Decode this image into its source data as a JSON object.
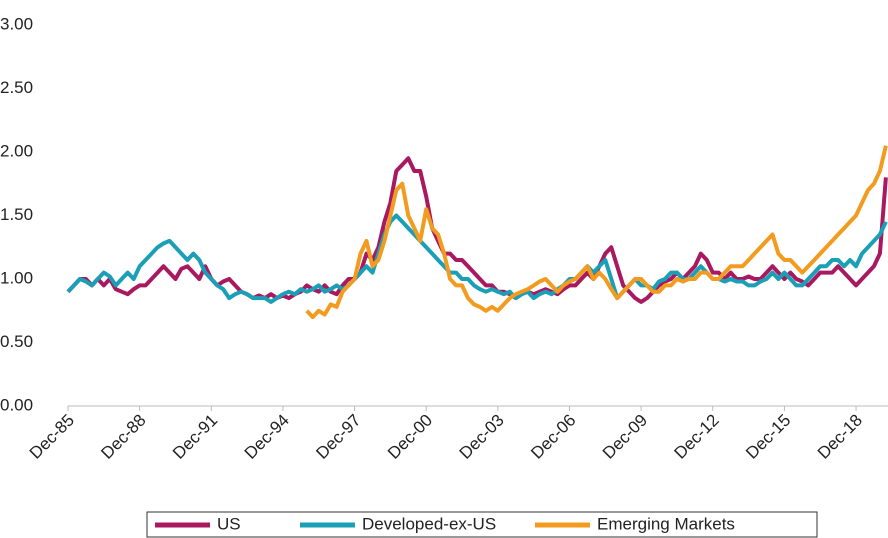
{
  "chart_data": {
    "type": "line",
    "categories": [
      "Dec-85",
      null,
      null,
      null,
      null,
      null,
      null,
      null,
      null,
      null,
      null,
      null,
      "Dec-88",
      null,
      null,
      null,
      null,
      null,
      null,
      null,
      null,
      null,
      null,
      null,
      "Dec-91",
      null,
      null,
      null,
      null,
      null,
      null,
      null,
      null,
      null,
      null,
      null,
      "Dec-94",
      null,
      null,
      null,
      null,
      null,
      null,
      null,
      null,
      null,
      null,
      null,
      "Dec-97",
      null,
      null,
      null,
      null,
      null,
      null,
      null,
      null,
      null,
      null,
      null,
      "Dec-00",
      null,
      null,
      null,
      null,
      null,
      null,
      null,
      null,
      null,
      null,
      null,
      "Dec-03",
      null,
      null,
      null,
      null,
      null,
      null,
      null,
      null,
      null,
      null,
      null,
      "Dec-06",
      null,
      null,
      null,
      null,
      null,
      null,
      null,
      null,
      null,
      null,
      null,
      "Dec-09",
      null,
      null,
      null,
      null,
      null,
      null,
      null,
      null,
      null,
      null,
      null,
      "Dec-12",
      null,
      null,
      null,
      null,
      null,
      null,
      null,
      null,
      null,
      null,
      null,
      "Dec-15",
      null,
      null,
      null,
      null,
      null,
      null,
      null,
      null,
      null,
      null,
      null,
      "Dec-18",
      null,
      null,
      null,
      null,
      null
    ],
    "series": [
      {
        "name": "US",
        "color": "#a8195f",
        "values": [
          0.9,
          0.95,
          1.0,
          1.0,
          0.95,
          1.0,
          0.95,
          1.0,
          0.92,
          0.9,
          0.88,
          0.92,
          0.95,
          0.95,
          1.0,
          1.05,
          1.1,
          1.05,
          1.0,
          1.08,
          1.1,
          1.05,
          1.0,
          1.1,
          1.0,
          0.95,
          0.98,
          1.0,
          0.95,
          0.9,
          0.88,
          0.85,
          0.87,
          0.85,
          0.88,
          0.85,
          0.87,
          0.85,
          0.88,
          0.9,
          0.95,
          0.92,
          0.9,
          0.95,
          0.9,
          0.88,
          0.95,
          1.0,
          1.0,
          1.05,
          1.2,
          1.15,
          1.25,
          1.45,
          1.6,
          1.85,
          1.9,
          1.95,
          1.85,
          1.85,
          1.65,
          1.4,
          1.3,
          1.2,
          1.2,
          1.15,
          1.15,
          1.1,
          1.05,
          1.0,
          0.95,
          0.95,
          0.9,
          0.9,
          0.88,
          0.85,
          0.88,
          0.9,
          0.88,
          0.9,
          0.92,
          0.9,
          0.88,
          0.92,
          0.95,
          0.95,
          1.0,
          1.05,
          1.0,
          1.1,
          1.2,
          1.25,
          1.1,
          0.95,
          0.9,
          0.85,
          0.82,
          0.85,
          0.9,
          0.95,
          0.98,
          1.0,
          1.05,
          1.0,
          1.05,
          1.1,
          1.2,
          1.15,
          1.05,
          1.05,
          1.0,
          1.05,
          1.0,
          1.0,
          1.02,
          1.0,
          1.0,
          1.05,
          1.1,
          1.05,
          1.0,
          1.05,
          1.0,
          0.98,
          0.95,
          1.0,
          1.05,
          1.05,
          1.05,
          1.1,
          1.05,
          1.0,
          0.95,
          1.0,
          1.05,
          1.1,
          1.2,
          1.8
        ]
      },
      {
        "name": "Developed-ex-US",
        "color": "#1a9fb6",
        "values": [
          0.9,
          0.95,
          1.0,
          0.98,
          0.95,
          1.0,
          1.05,
          1.02,
          0.95,
          1.0,
          1.05,
          1.0,
          1.1,
          1.15,
          1.2,
          1.25,
          1.28,
          1.3,
          1.25,
          1.2,
          1.15,
          1.2,
          1.15,
          1.05,
          1.0,
          0.95,
          0.92,
          0.85,
          0.88,
          0.9,
          0.88,
          0.85,
          0.85,
          0.85,
          0.82,
          0.85,
          0.88,
          0.9,
          0.88,
          0.92,
          0.9,
          0.92,
          0.95,
          0.9,
          0.92,
          0.95,
          0.92,
          0.95,
          1.0,
          1.05,
          1.1,
          1.05,
          1.2,
          1.35,
          1.45,
          1.5,
          1.45,
          1.4,
          1.35,
          1.3,
          1.25,
          1.2,
          1.15,
          1.1,
          1.05,
          1.05,
          1.0,
          1.0,
          0.95,
          0.92,
          0.9,
          0.92,
          0.9,
          0.88,
          0.9,
          0.85,
          0.88,
          0.9,
          0.85,
          0.88,
          0.9,
          0.88,
          0.92,
          0.95,
          1.0,
          1.0,
          1.05,
          1.1,
          1.05,
          1.1,
          1.15,
          1.0,
          0.85,
          0.9,
          0.95,
          1.0,
          0.95,
          0.95,
          0.92,
          0.98,
          1.0,
          1.05,
          1.05,
          1.0,
          1.0,
          1.05,
          1.1,
          1.05,
          1.0,
          1.0,
          0.98,
          1.0,
          0.98,
          0.98,
          0.95,
          0.95,
          0.98,
          1.0,
          1.05,
          1.0,
          1.05,
          1.0,
          0.95,
          0.95,
          1.0,
          1.05,
          1.1,
          1.1,
          1.15,
          1.15,
          1.1,
          1.15,
          1.1,
          1.2,
          1.25,
          1.3,
          1.35,
          1.45
        ]
      },
      {
        "name": "Emerging Markets",
        "color": "#f39b1f",
        "values": [
          null,
          null,
          null,
          null,
          null,
          null,
          null,
          null,
          null,
          null,
          null,
          null,
          null,
          null,
          null,
          null,
          null,
          null,
          null,
          null,
          null,
          null,
          null,
          null,
          null,
          null,
          null,
          null,
          null,
          null,
          null,
          null,
          null,
          null,
          null,
          null,
          null,
          null,
          null,
          null,
          0.75,
          0.7,
          0.75,
          0.72,
          0.8,
          0.78,
          0.9,
          0.95,
          1.0,
          1.2,
          1.3,
          1.1,
          1.15,
          1.3,
          1.5,
          1.7,
          1.75,
          1.5,
          1.4,
          1.3,
          1.55,
          1.4,
          1.35,
          1.2,
          1.0,
          0.95,
          0.95,
          0.85,
          0.8,
          0.78,
          0.75,
          0.78,
          0.75,
          0.8,
          0.85,
          0.88,
          0.9,
          0.92,
          0.95,
          0.98,
          1.0,
          0.95,
          0.9,
          0.95,
          0.98,
          1.0,
          1.05,
          1.1,
          1.0,
          1.05,
          1.0,
          0.92,
          0.85,
          0.9,
          0.95,
          1.0,
          1.0,
          0.95,
          0.9,
          0.9,
          0.95,
          0.95,
          1.0,
          0.98,
          1.0,
          1.0,
          1.05,
          1.05,
          1.0,
          1.0,
          1.05,
          1.1,
          1.1,
          1.1,
          1.15,
          1.2,
          1.25,
          1.3,
          1.35,
          1.2,
          1.15,
          1.15,
          1.1,
          1.05,
          1.1,
          1.15,
          1.2,
          1.25,
          1.3,
          1.35,
          1.4,
          1.45,
          1.5,
          1.6,
          1.7,
          1.75,
          1.85,
          2.05
        ]
      }
    ],
    "ylim": [
      0,
      3
    ],
    "yticks": [
      {
        "value": 0,
        "label": "0.00"
      },
      {
        "value": 0.5,
        "label": "0.50"
      },
      {
        "value": 1,
        "label": "1.00"
      },
      {
        "value": 1.5,
        "label": "1.50"
      },
      {
        "value": 2,
        "label": "2.00"
      },
      {
        "value": 2.5,
        "label": "2.50"
      },
      {
        "value": 3,
        "label": "3.00"
      }
    ],
    "grid": false,
    "legend": "bottom"
  }
}
